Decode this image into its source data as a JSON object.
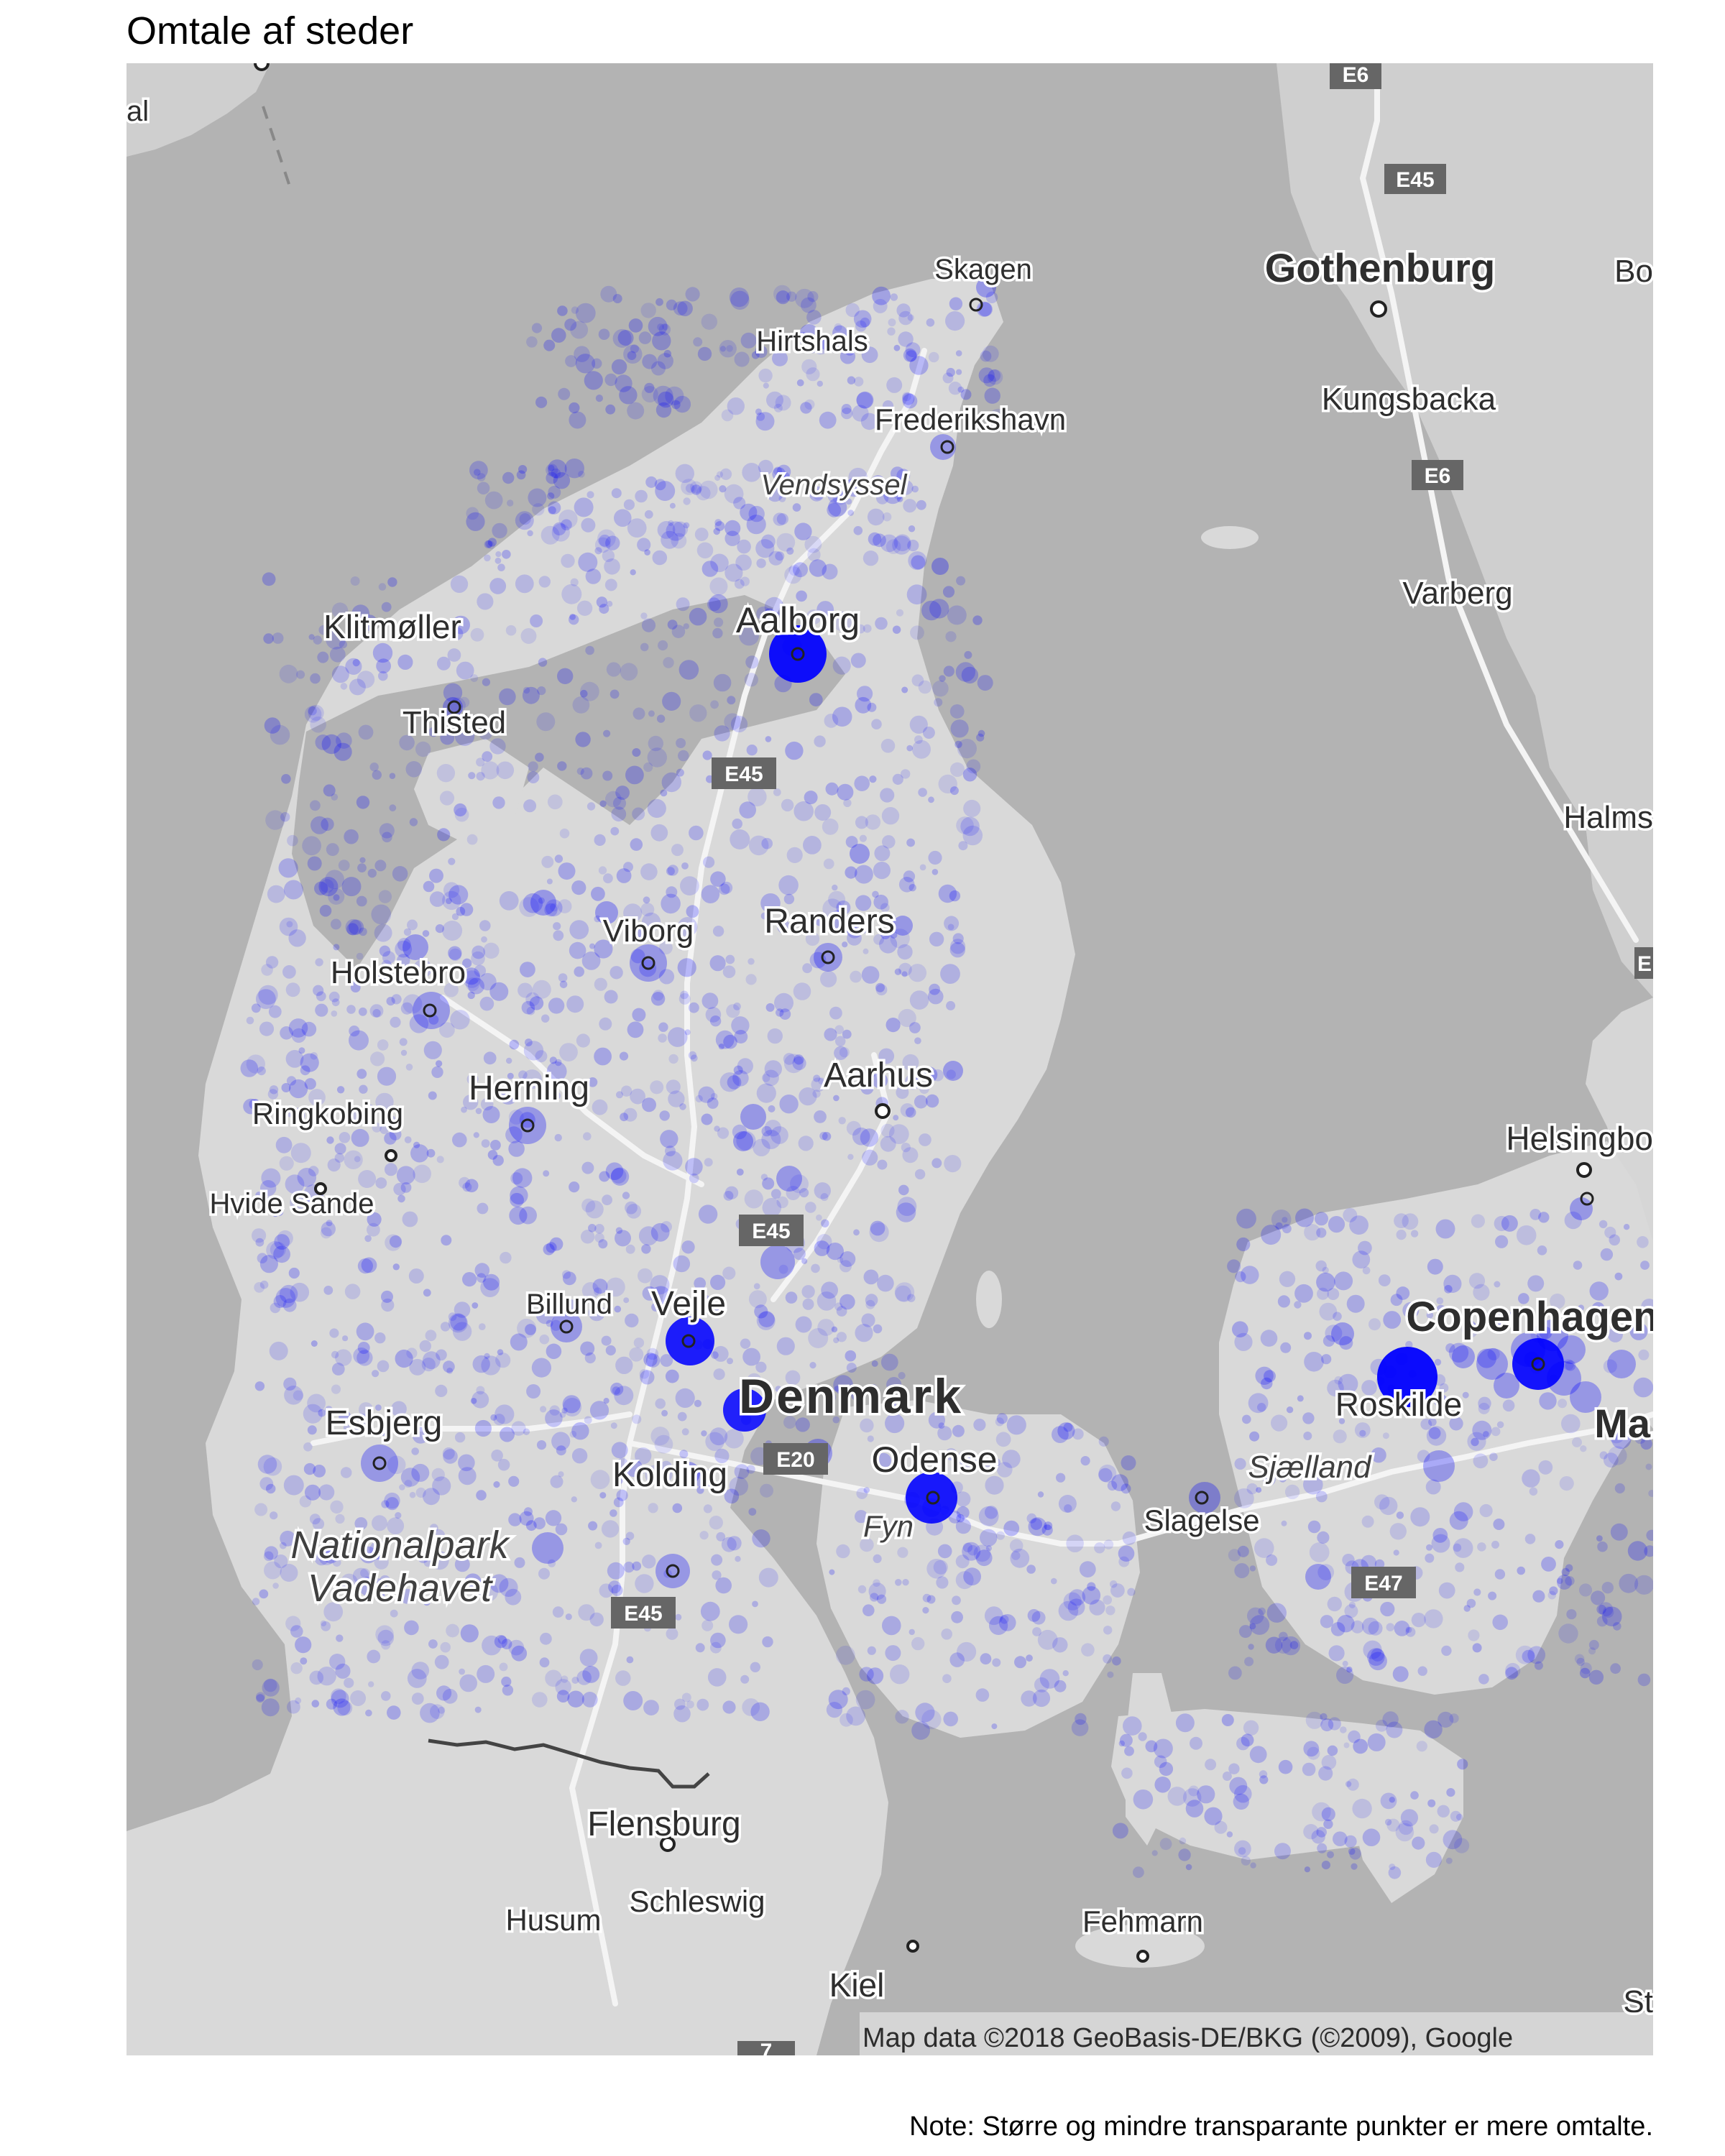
{
  "title": "Omtale af steder",
  "note": "Note: Større og mindre transparante punkter er mere omtalte.",
  "attribution": "Map data ©2018 GeoBasis-DE/BKG (©2009), Google",
  "colors": {
    "water": "#b3b3b3",
    "land": "#d9d9d9",
    "land_sweden": "#cfcfcf",
    "road": "#f4f4f4",
    "marker": "#0000ff",
    "shield": "#666666",
    "border": "#444444"
  },
  "map_labels": {
    "skagen": "Skagen",
    "hirtshals": "Hirtshals",
    "frederikshavn": "Frederikshavn",
    "vendsyssel": "Vendsyssel",
    "aalborg": "Aalborg",
    "klitmoller": "Klitmøller",
    "thisted": "Thisted",
    "viborg": "Viborg",
    "randers": "Randers",
    "holstebro": "Holstebro",
    "herning": "Herning",
    "aarhus": "Aarhus",
    "ringkobing": "Ringkobing",
    "hvide_sande": "Hvide Sande",
    "billund": "Billund",
    "vejle": "Vejle",
    "denmark": "Denmark",
    "esbjerg": "Esbjerg",
    "kolding": "Kolding",
    "odense": "Odense",
    "fyn": "Fyn",
    "nationalpark": "Nationalpark",
    "vadehavet": "Vadehavet",
    "flensburg": "Flensburg",
    "schleswig": "Schleswig",
    "husum": "Husum",
    "kiel": "Kiel",
    "fehmarn": "Fehmarn",
    "slagelse": "Slagelse",
    "sjaelland": "Sjælland",
    "roskilde": "Roskilde",
    "copenhagen": "Copenhagen",
    "malmo": "Ma",
    "helsingborg": "Helsingbo",
    "gothenburg": "Gothenburg",
    "kungsbacka": "Kungsbacka",
    "varberg": "Varberg",
    "halmstad": "Halms",
    "boras": "Bo",
    "stralsund": "St",
    "partial_left": "al"
  },
  "road_shields": {
    "e6_top": "E6",
    "e45_sweden": "E45",
    "e6_sweden": "E6",
    "e45_jutland": "E45",
    "e45_mid": "E45",
    "e20": "E20",
    "e45_south": "E45",
    "e47": "E47",
    "e_right": "E",
    "e7": "7"
  },
  "markers": {
    "large": [
      {
        "place": "Aalborg",
        "weight": 0.95
      },
      {
        "place": "Roskilde",
        "weight": 1.0
      },
      {
        "place": "Copenhagen",
        "weight": 0.9
      },
      {
        "place": "Odense",
        "weight": 0.85
      },
      {
        "place": "Vejle",
        "weight": 0.8
      },
      {
        "place": "Denmark label",
        "weight": 0.75
      }
    ]
  }
}
